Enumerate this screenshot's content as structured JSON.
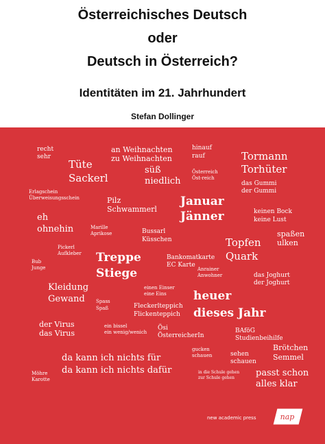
{
  "cover": {
    "title_line1": "Österreichisches Deutsch",
    "title_line2": "oder",
    "title_line3": "Deutsch in Österreich?",
    "subtitle": "Identitäten im 21. Jahrhundert",
    "author": "Stefan Dollinger",
    "publisher": "new academic press",
    "logo_text": "nap",
    "colors": {
      "background_red": "#d8353a",
      "text_dark": "#111111"
    }
  },
  "words": {
    "recht": "recht",
    "sehr": "sehr",
    "an_weihnachten": "an Weihnachten",
    "zu_weihnachten": "zu Weihnachten",
    "hinauf": "hinauf",
    "rauf": "rauf",
    "tormann": "Tormann",
    "torhueter": "Torhüter",
    "tuete": "Tüte",
    "sackerl": "Sackerl",
    "suess": "süß",
    "niedlich": "niedlich",
    "oesterreich": "Österreich",
    "oest_reich": "Öst-reich",
    "das_gummi": "das Gummi",
    "der_gummi": "der Gummi",
    "erlagschein": "Erlagschein",
    "ueberweisungsschein": "Überweisungsschein",
    "pilz": "Pilz",
    "schwammerl": "Schwammerl",
    "januar": "Januar",
    "jaenner": "Jänner",
    "keinen_bock": "keinen Bock",
    "keine_lust": "keine Lust",
    "eh": "eh",
    "ohnehin": "ohnehin",
    "marille": "Marille",
    "aprikose": "Aprikose",
    "bussarl": "Bussarl",
    "kuesschen": "Küsschen",
    "spassen": "spaßen",
    "ulken": "ulken",
    "pickerl": "Pickerl",
    "aufkleber": "Aufkleber",
    "topfen": "Topfen",
    "quark": "Quark",
    "bub": "Bub",
    "junge": "Junge",
    "treppe": "Treppe",
    "stiege": "Stiege",
    "bankomatkarte": "Bankomatkarte",
    "ec_karte": "EC Karte",
    "anrainer": "Anrainer",
    "anwohner": "Anwohner",
    "das_joghurt": "das Joghurt",
    "der_joghurt": "der Joghurt",
    "kleidung": "Kleidung",
    "gewand": "Gewand",
    "einen_einser": "einen Einser",
    "eine_eins": "eine Eins",
    "heuer": "heuer",
    "dieses_jahr": "dieses Jahr",
    "spass1": "Spass",
    "spass2": "Spaß",
    "fleckerlteppich": "Fleckerlteppich",
    "flickenteppich": "Flickenteppich",
    "der_virus": "der Virus",
    "das_virus": "das Virus",
    "ein_bissel": "ein bissel",
    "ein_wenig": "ein wenig/wenich",
    "oesi": "Ösi",
    "oesterreicherin": "ÖsterreicherIn",
    "bafoeg": "BAföG",
    "studienbeihilfe": "Studienbeihilfe",
    "broetchen": "Brötchen",
    "semmel": "Semmel",
    "gucken": "gucken",
    "schauen1": "schauen",
    "sehen": "sehen",
    "schauen2": "schauen",
    "nichts_fuer": "da kann ich nichts für",
    "nichts_dafuer": "da kann ich nichts dafür",
    "moehre": "Möhre",
    "karotte": "Karotte",
    "schule_gehen": "in die Schule gehen",
    "zur_schule": "zur Schule gehen",
    "passt_schon": "passt schon",
    "alles_klar": "alles klar"
  }
}
